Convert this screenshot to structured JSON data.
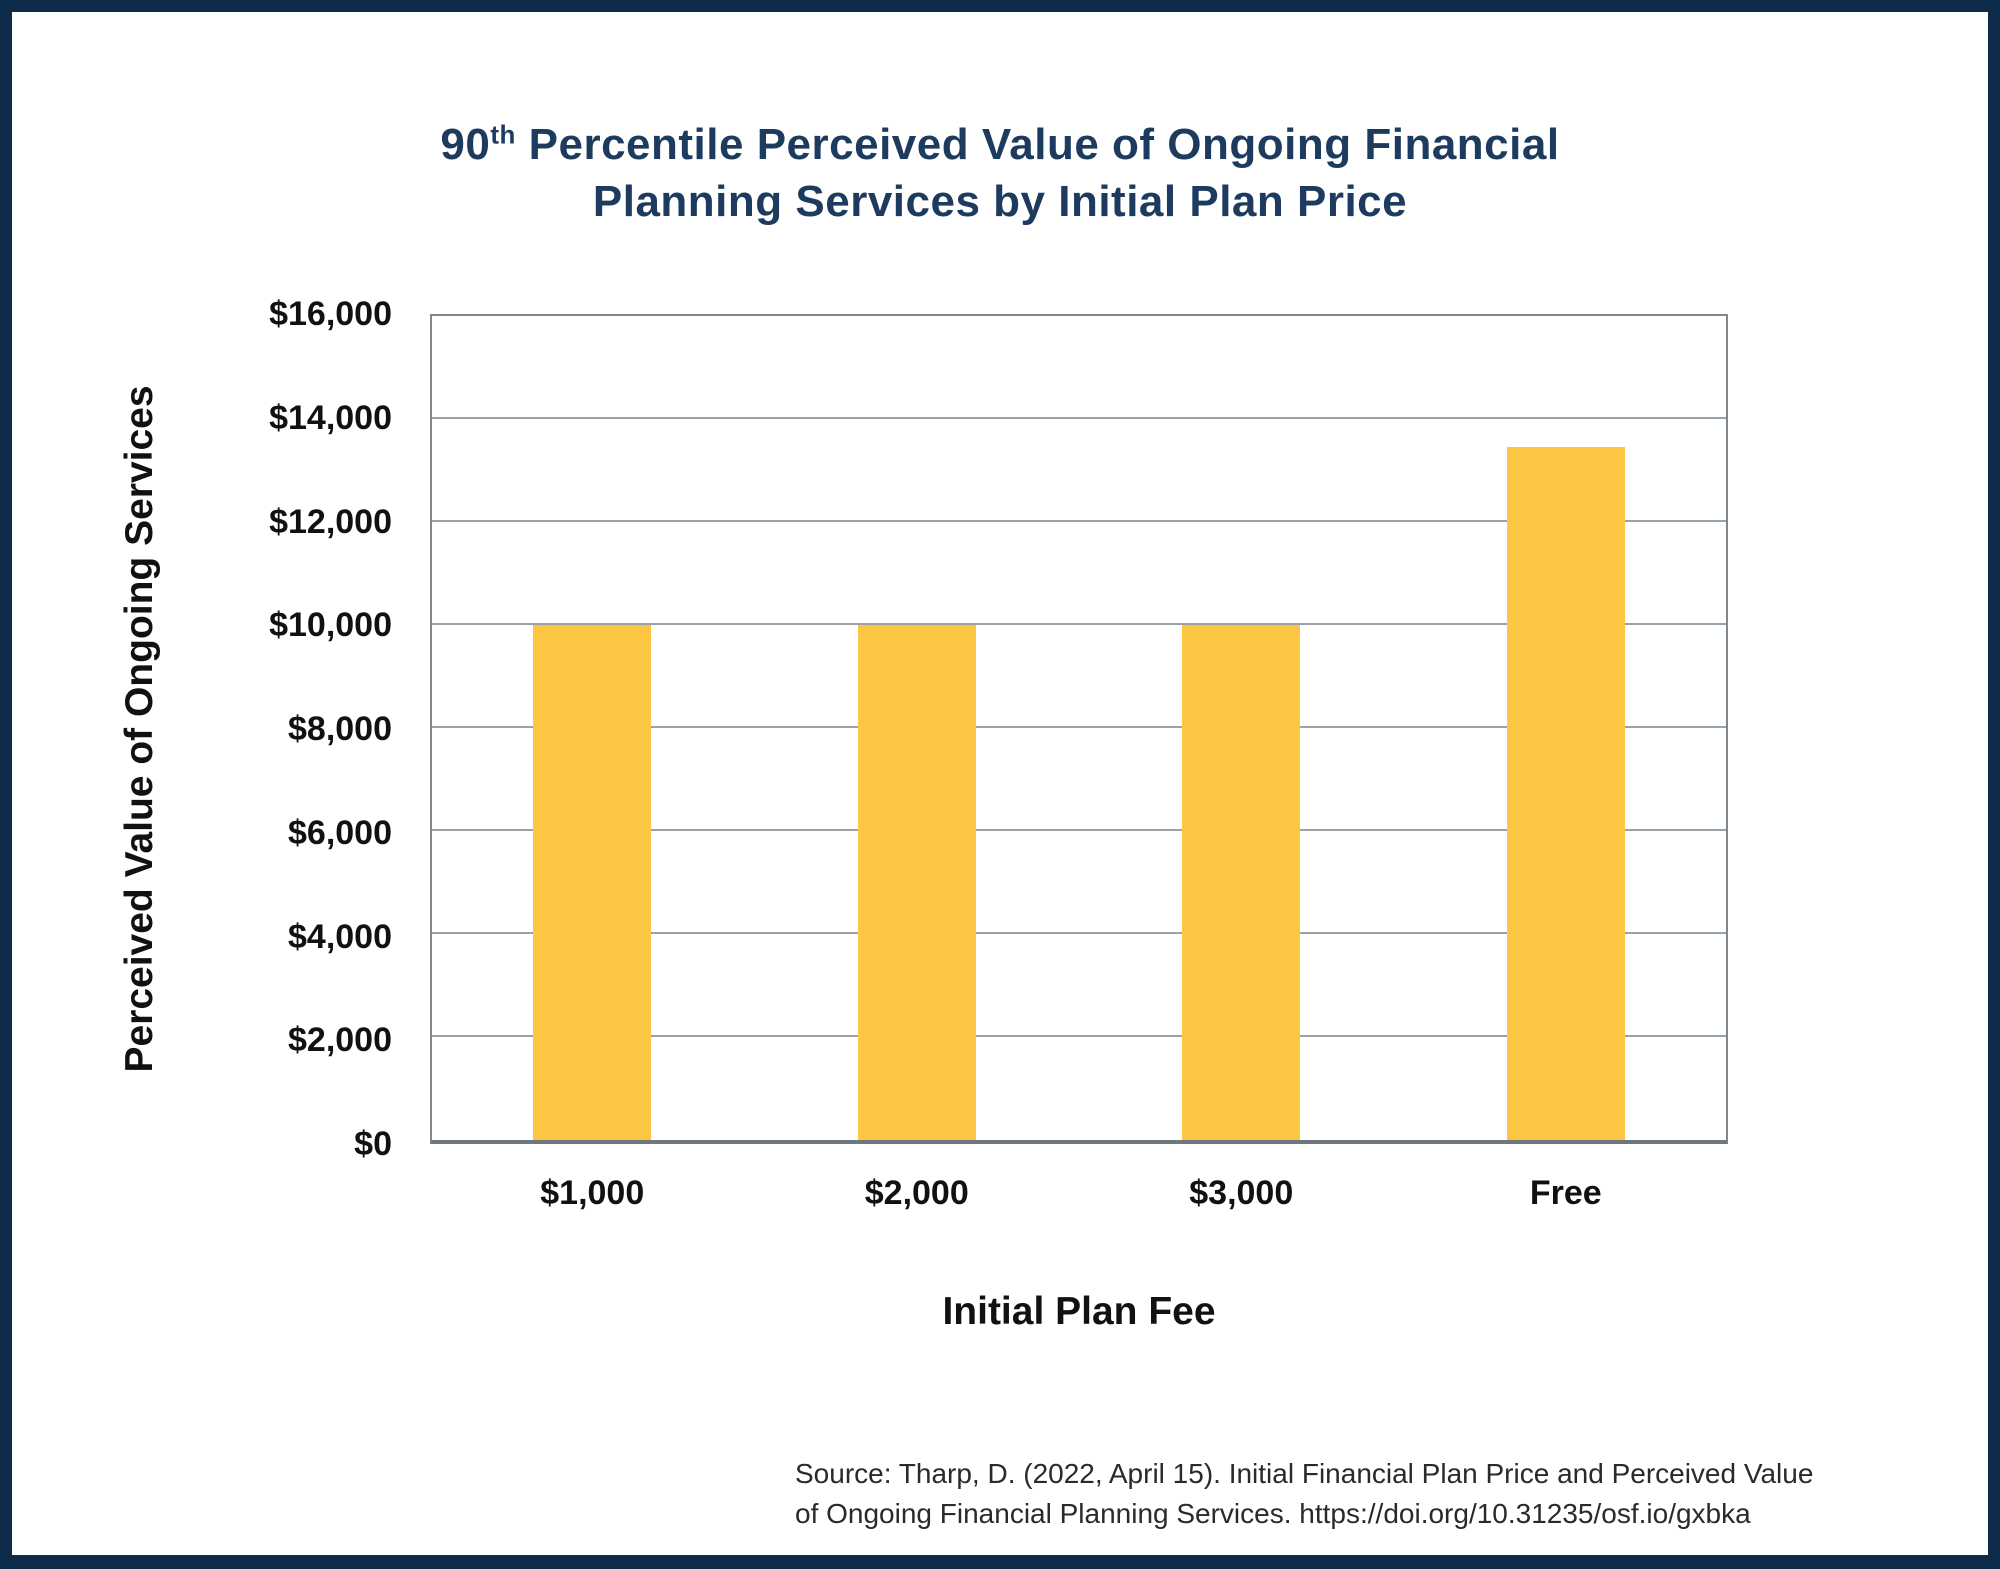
{
  "title": {
    "prefix": "90",
    "superscript": "th",
    "line1_rest": " Percentile Perceived Value of Ongoing Financial",
    "line2": "Planning Services by Initial Plan Price"
  },
  "source": {
    "line1": "Source: Tharp, D. (2022, April 15). Initial Financial Plan Price and Perceived Value",
    "line2": "of Ongoing Financial Planning Services. https://doi.org/10.31235/osf.io/gxbka"
  },
  "colors": {
    "frame_navy": "#0f2b4c",
    "title_navy": "#1d3b5e",
    "bar_yellow": "#fdc642",
    "gridline_gray": "#9aa1a7",
    "plot_border_gray": "#7e888f",
    "text_black": "#111111"
  },
  "chart_data": {
    "type": "bar",
    "title": "90th Percentile Perceived Value of Ongoing Financial Planning Services by Initial Plan Price",
    "categories": [
      "$1,000",
      "$2,000",
      "$3,000",
      "Free"
    ],
    "values": [
      10000,
      10000,
      10000,
      13450
    ],
    "xlabel": "Initial Plan Fee",
    "ylabel": "Perceived Value of Ongoing Services",
    "ylim": [
      0,
      16000
    ],
    "ytick_step": 2000,
    "ytick_labels": [
      "$0",
      "$2,000",
      "$4,000",
      "$6,000",
      "$8,000",
      "$10,000",
      "$12,000",
      "$14,000",
      "$16,000"
    ],
    "grid": true,
    "legend": false,
    "bar_color": "#fdc642"
  }
}
